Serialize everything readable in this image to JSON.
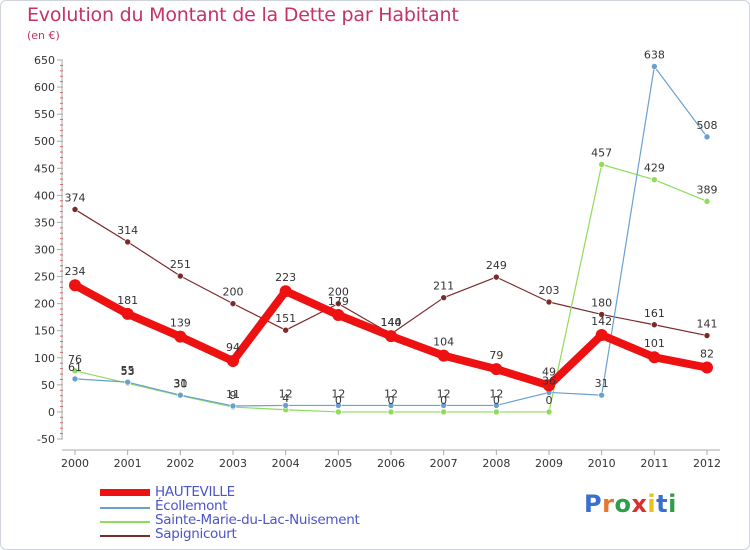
{
  "title": "Evolution du Montant de la Dette par Habitant",
  "subtitle": "(en €)",
  "logo": "Proxiti",
  "logo_colors": [
    "#3a6fcf",
    "#e8762c",
    "#2f9e4a",
    "#d9312f",
    "#e8c21c",
    "#3a6fcf",
    "#2f9e4a"
  ],
  "chart_data": {
    "type": "line",
    "x": [
      "2000",
      "2001",
      "2002",
      "2003",
      "2004",
      "2005",
      "2006",
      "2007",
      "2008",
      "2009",
      "2010",
      "2011",
      "2012"
    ],
    "ylim": [
      -50,
      650
    ],
    "yticks": [
      -50,
      0,
      50,
      100,
      150,
      200,
      250,
      300,
      350,
      400,
      450,
      500,
      550,
      600,
      650
    ],
    "grid": false,
    "series": [
      {
        "name": "Sapignicourt",
        "color": "#7b2a2a",
        "values": [
          374,
          314,
          251,
          200,
          151,
          200,
          144,
          211,
          249,
          203,
          180,
          161,
          141
        ],
        "labels": [
          "374",
          "314",
          "251",
          "200",
          "151",
          "200",
          "144",
          "211",
          "249",
          "203",
          "180",
          "161",
          "141"
        ]
      },
      {
        "name": "Sainte-Marie-du-Lac-Nuisement",
        "color": "#8fdc5a",
        "values": [
          76,
          53,
          30,
          9,
          4,
          0,
          0,
          0,
          0,
          0,
          457,
          429,
          389
        ],
        "labels": [
          "76",
          "53",
          "30",
          "9",
          "4",
          "0",
          "0",
          "0",
          "0",
          "0",
          "457",
          "429",
          "389"
        ]
      },
      {
        "name": "Écollemont",
        "color": "#6aa0d0",
        "values": [
          61,
          55,
          31,
          11,
          12,
          12,
          12,
          12,
          12,
          36,
          31,
          638,
          508
        ],
        "labels": [
          "61",
          "55",
          "31",
          "11",
          "12",
          "12",
          "12",
          "12",
          "12",
          "36",
          "31",
          "638",
          "508"
        ]
      },
      {
        "name": "HAUTEVILLE",
        "color": "#ee1111",
        "values": [
          234,
          181,
          139,
          94,
          223,
          179,
          140,
          104,
          79,
          49,
          142,
          101,
          82
        ],
        "labels": [
          "234",
          "181",
          "139",
          "94",
          "223",
          "179",
          "140",
          "104",
          "79",
          "49",
          "142",
          "101",
          "82"
        ]
      }
    ]
  },
  "legend": [
    {
      "name": "HAUTEVILLE",
      "color": "#ee1111"
    },
    {
      "name": "Écollemont",
      "color": "#6aa0d0"
    },
    {
      "name": "Sainte-Marie-du-Lac-Nuisement",
      "color": "#8fdc5a"
    },
    {
      "name": "Sapignicourt",
      "color": "#7b2a2a"
    }
  ]
}
